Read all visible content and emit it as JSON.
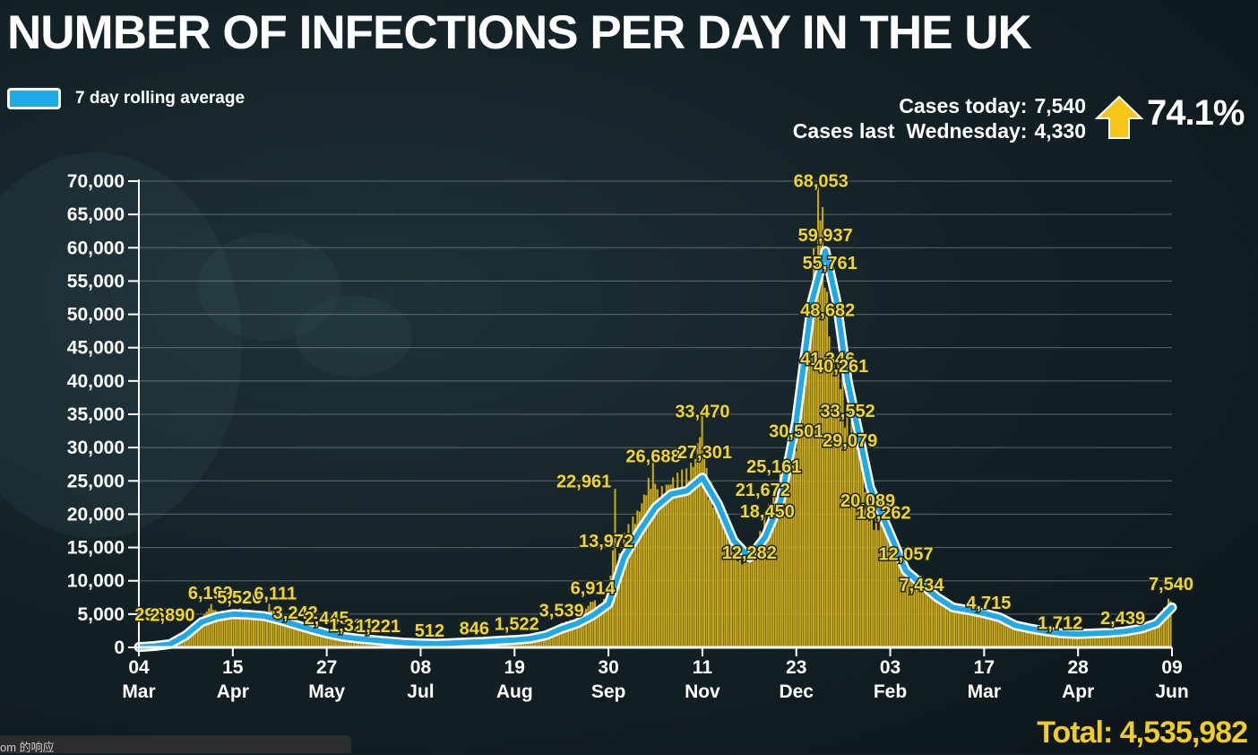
{
  "chart_data": {
    "type": "bar",
    "title": "NUMBER OF INFECTIONS PER DAY IN THE UK",
    "legend": {
      "label": "7 day rolling average",
      "placement": "top-left",
      "color": "#1fa9e6"
    },
    "ylim": [
      0,
      70000
    ],
    "yticks": [
      0,
      5000,
      10000,
      15000,
      20000,
      25000,
      30000,
      35000,
      40000,
      45000,
      50000,
      55000,
      60000,
      65000,
      70000
    ],
    "ytick_labels": [
      "0",
      "5,000",
      "10,000",
      "15,000",
      "20,000",
      "25,000",
      "30,000",
      "35,000",
      "40,000",
      "45,000",
      "50,000",
      "55,000",
      "60,000",
      "65,000",
      "70,000"
    ],
    "x_range": [
      "2020-03-04",
      "2021-06-09"
    ],
    "xticks": [
      {
        "date": "2020-03-04",
        "day": "04",
        "month": "Mar"
      },
      {
        "date": "2020-04-15",
        "day": "15",
        "month": "Apr"
      },
      {
        "date": "2020-05-27",
        "day": "27",
        "month": "May"
      },
      {
        "date": "2020-07-08",
        "day": "08",
        "month": "Jul"
      },
      {
        "date": "2020-08-19",
        "day": "19",
        "month": "Aug"
      },
      {
        "date": "2020-09-30",
        "day": "30",
        "month": "Sep"
      },
      {
        "date": "2020-11-11",
        "day": "11",
        "month": "Nov"
      },
      {
        "date": "2020-12-23",
        "day": "23",
        "month": "Dec"
      },
      {
        "date": "2021-02-03",
        "day": "03",
        "month": "Feb"
      },
      {
        "date": "2021-03-17",
        "day": "17",
        "month": "Mar"
      },
      {
        "date": "2021-04-28",
        "day": "28",
        "month": "Apr"
      },
      {
        "date": "2021-06-09",
        "day": "09",
        "month": "Jun"
      }
    ],
    "grid": true,
    "series": [
      {
        "name": "Daily cases",
        "color": "#c9a819",
        "points": [
          [
            "2020-03-04",
            50
          ],
          [
            "2020-03-11",
            200
          ],
          [
            "2020-03-18",
            600
          ],
          [
            "2020-03-25",
            2200
          ],
          [
            "2020-04-01",
            4300
          ],
          [
            "2020-04-05",
            6199
          ],
          [
            "2020-04-08",
            4700
          ],
          [
            "2020-04-15",
            5500
          ],
          [
            "2020-04-18",
            5526
          ],
          [
            "2020-04-22",
            4800
          ],
          [
            "2020-04-29",
            4200
          ],
          [
            "2020-05-01",
            6111
          ],
          [
            "2020-05-06",
            4400
          ],
          [
            "2020-05-13",
            3242
          ],
          [
            "2020-05-20",
            2600
          ],
          [
            "2020-05-27",
            2445
          ],
          [
            "2020-06-03",
            1700
          ],
          [
            "2020-06-10",
            1321
          ],
          [
            "2020-06-17",
            1221
          ],
          [
            "2020-06-24",
            1000
          ],
          [
            "2020-07-01",
            800
          ],
          [
            "2020-07-08",
            600
          ],
          [
            "2020-07-15",
            512
          ],
          [
            "2020-07-22",
            700
          ],
          [
            "2020-07-29",
            846
          ],
          [
            "2020-08-05",
            900
          ],
          [
            "2020-08-12",
            1100
          ],
          [
            "2020-08-19",
            1200
          ],
          [
            "2020-08-26",
            1522
          ],
          [
            "2020-09-02",
            2000
          ],
          [
            "2020-09-09",
            3539
          ],
          [
            "2020-09-16",
            4000
          ],
          [
            "2020-09-23",
            6914
          ],
          [
            "2020-09-26",
            6000
          ],
          [
            "2020-09-30",
            7500
          ],
          [
            "2020-10-02",
            13972
          ],
          [
            "2020-10-03",
            22961
          ],
          [
            "2020-10-04",
            12000
          ],
          [
            "2020-10-07",
            16000
          ],
          [
            "2020-10-14",
            20000
          ],
          [
            "2020-10-21",
            26688
          ],
          [
            "2020-10-22",
            22000
          ],
          [
            "2020-10-28",
            24000
          ],
          [
            "2020-11-04",
            25000
          ],
          [
            "2020-11-08",
            27301
          ],
          [
            "2020-11-11",
            33470
          ],
          [
            "2020-11-13",
            25000
          ],
          [
            "2020-11-18",
            20000
          ],
          [
            "2020-11-25",
            15000
          ],
          [
            "2020-11-30",
            12282
          ],
          [
            "2020-12-05",
            14000
          ],
          [
            "2020-12-09",
            18450
          ],
          [
            "2020-12-13",
            21672
          ],
          [
            "2020-12-16",
            25161
          ],
          [
            "2020-12-23",
            30501
          ],
          [
            "2020-12-25",
            35000
          ],
          [
            "2020-12-29",
            48682
          ],
          [
            "2020-12-31",
            55761
          ],
          [
            "2021-01-01",
            59937
          ],
          [
            "2021-01-03",
            68053
          ],
          [
            "2021-01-05",
            55000
          ],
          [
            "2021-01-08",
            41346
          ],
          [
            "2021-01-12",
            40261
          ],
          [
            "2021-01-15",
            33552
          ],
          [
            "2021-01-20",
            29079
          ],
          [
            "2021-01-25",
            20089
          ],
          [
            "2021-01-28",
            18262
          ],
          [
            "2021-02-03",
            17000
          ],
          [
            "2021-02-10",
            12057
          ],
          [
            "2021-02-17",
            10000
          ],
          [
            "2021-02-24",
            7434
          ],
          [
            "2021-03-03",
            6000
          ],
          [
            "2021-03-10",
            5500
          ],
          [
            "2021-03-17",
            4715
          ],
          [
            "2021-03-24",
            4000
          ],
          [
            "2021-03-31",
            3000
          ],
          [
            "2021-04-07",
            2700
          ],
          [
            "2021-04-14",
            2300
          ],
          [
            "2021-04-21",
            2000
          ],
          [
            "2021-04-28",
            1712
          ],
          [
            "2021-05-05",
            1900
          ],
          [
            "2021-05-12",
            2100
          ],
          [
            "2021-05-19",
            2439
          ],
          [
            "2021-05-26",
            2800
          ],
          [
            "2021-06-02",
            4000
          ],
          [
            "2021-06-07",
            6000
          ],
          [
            "2021-06-09",
            7540
          ]
        ]
      },
      {
        "name": "7 day rolling average",
        "color": "#1fa9e6",
        "points": [
          [
            "2020-03-04",
            50
          ],
          [
            "2020-03-11",
            200
          ],
          [
            "2020-03-18",
            500
          ],
          [
            "2020-03-25",
            1800
          ],
          [
            "2020-04-01",
            3800
          ],
          [
            "2020-04-08",
            4600
          ],
          [
            "2020-04-15",
            5000
          ],
          [
            "2020-04-22",
            4900
          ],
          [
            "2020-04-29",
            4700
          ],
          [
            "2020-05-06",
            4100
          ],
          [
            "2020-05-13",
            3400
          ],
          [
            "2020-05-20",
            2700
          ],
          [
            "2020-05-27",
            2100
          ],
          [
            "2020-06-03",
            1600
          ],
          [
            "2020-06-10",
            1300
          ],
          [
            "2020-06-17",
            1100
          ],
          [
            "2020-06-24",
            900
          ],
          [
            "2020-07-01",
            700
          ],
          [
            "2020-07-08",
            600
          ],
          [
            "2020-07-15",
            550
          ],
          [
            "2020-07-22",
            650
          ],
          [
            "2020-07-29",
            750
          ],
          [
            "2020-08-05",
            850
          ],
          [
            "2020-08-12",
            1000
          ],
          [
            "2020-08-19",
            1100
          ],
          [
            "2020-08-26",
            1300
          ],
          [
            "2020-09-02",
            1800
          ],
          [
            "2020-09-09",
            2800
          ],
          [
            "2020-09-16",
            3600
          ],
          [
            "2020-09-23",
            4800
          ],
          [
            "2020-09-30",
            6500
          ],
          [
            "2020-10-07",
            13500
          ],
          [
            "2020-10-14",
            17500
          ],
          [
            "2020-10-21",
            21000
          ],
          [
            "2020-10-28",
            23000
          ],
          [
            "2020-11-04",
            23500
          ],
          [
            "2020-11-11",
            25500
          ],
          [
            "2020-11-18",
            21500
          ],
          [
            "2020-11-25",
            16000
          ],
          [
            "2020-12-02",
            13500
          ],
          [
            "2020-12-09",
            16500
          ],
          [
            "2020-12-16",
            22000
          ],
          [
            "2020-12-23",
            34000
          ],
          [
            "2020-12-30",
            52000
          ],
          [
            "2021-01-05",
            59500
          ],
          [
            "2021-01-10",
            52000
          ],
          [
            "2021-01-15",
            40000
          ],
          [
            "2021-01-20",
            32000
          ],
          [
            "2021-01-25",
            24000
          ],
          [
            "2021-02-03",
            17000
          ],
          [
            "2021-02-10",
            11500
          ],
          [
            "2021-02-17",
            9500
          ],
          [
            "2021-02-24",
            7500
          ],
          [
            "2021-03-03",
            6000
          ],
          [
            "2021-03-10",
            5600
          ],
          [
            "2021-03-17",
            5100
          ],
          [
            "2021-03-24",
            4500
          ],
          [
            "2021-03-31",
            3300
          ],
          [
            "2021-04-07",
            2800
          ],
          [
            "2021-04-14",
            2400
          ],
          [
            "2021-04-21",
            2100
          ],
          [
            "2021-04-28",
            2000
          ],
          [
            "2021-05-05",
            2100
          ],
          [
            "2021-05-12",
            2200
          ],
          [
            "2021-05-19",
            2400
          ],
          [
            "2021-05-26",
            2800
          ],
          [
            "2021-06-02",
            3600
          ],
          [
            "2021-06-09",
            6000
          ]
        ]
      }
    ],
    "annotations": [
      {
        "date": "2020-03-11",
        "value": 2967,
        "text": "2967"
      },
      {
        "date": "2020-03-19",
        "value": 2890,
        "text": "2,890"
      },
      {
        "date": "2020-04-05",
        "value": 6199,
        "text": "6,199"
      },
      {
        "date": "2020-04-18",
        "value": 5526,
        "text": "5,526"
      },
      {
        "date": "2020-05-04",
        "value": 6111,
        "text": "6,111"
      },
      {
        "date": "2020-05-13",
        "value": 3242,
        "text": "3,242"
      },
      {
        "date": "2020-05-27",
        "value": 2445,
        "text": "2,445"
      },
      {
        "date": "2020-06-07",
        "value": 1321,
        "text": "1,321"
      },
      {
        "date": "2020-06-19",
        "value": 1221,
        "text": "1,221"
      },
      {
        "date": "2020-07-12",
        "value": 512,
        "text": "512"
      },
      {
        "date": "2020-08-01",
        "value": 846,
        "text": "846"
      },
      {
        "date": "2020-08-20",
        "value": 1522,
        "text": "1,522"
      },
      {
        "date": "2020-09-09",
        "value": 3539,
        "text": "3,539"
      },
      {
        "date": "2020-09-23",
        "value": 6914,
        "text": "6,914"
      },
      {
        "date": "2020-09-29",
        "value": 13972,
        "text": "13,972"
      },
      {
        "date": "2020-09-19",
        "value": 22961,
        "text": "22,961"
      },
      {
        "date": "2020-10-20",
        "value": 26688,
        "text": "26,688"
      },
      {
        "date": "2020-11-12",
        "value": 27301,
        "text": "27,301"
      },
      {
        "date": "2020-11-11",
        "value": 33470,
        "text": "33,470"
      },
      {
        "date": "2020-12-02",
        "value": 12282,
        "text": "12,282"
      },
      {
        "date": "2020-12-08",
        "value": 21672,
        "text": "21,672"
      },
      {
        "date": "2020-12-10",
        "value": 18450,
        "text": "18,450"
      },
      {
        "date": "2020-12-13",
        "value": 25161,
        "text": "25,161"
      },
      {
        "date": "2020-12-23",
        "value": 30501,
        "text": "30,501"
      },
      {
        "date": "2021-01-03",
        "value": 68053,
        "text": "68,053"
      },
      {
        "date": "2021-01-05",
        "value": 59937,
        "text": "59,937"
      },
      {
        "date": "2021-01-07",
        "value": 55761,
        "text": "55,761"
      },
      {
        "date": "2021-01-06",
        "value": 48682,
        "text": "48,682"
      },
      {
        "date": "2021-01-06",
        "value": 41346,
        "text": "41,346"
      },
      {
        "date": "2021-01-12",
        "value": 40261,
        "text": "40,261"
      },
      {
        "date": "2021-01-15",
        "value": 33552,
        "text": "33,552"
      },
      {
        "date": "2021-01-16",
        "value": 29079,
        "text": "29,079"
      },
      {
        "date": "2021-01-24",
        "value": 20089,
        "text": "20,089"
      },
      {
        "date": "2021-01-31",
        "value": 18262,
        "text": "18,262"
      },
      {
        "date": "2021-02-10",
        "value": 12057,
        "text": "12,057"
      },
      {
        "date": "2021-02-17",
        "value": 7434,
        "text": "7,434"
      },
      {
        "date": "2021-03-19",
        "value": 4715,
        "text": "4,715"
      },
      {
        "date": "2021-04-20",
        "value": 1712,
        "text": "1,712"
      },
      {
        "date": "2021-05-18",
        "value": 2439,
        "text": "2,439"
      },
      {
        "date": "2021-06-09",
        "value": 7540,
        "text": "7,540"
      }
    ]
  },
  "stats": {
    "cases_today_label": "Cases today:",
    "cases_today_value": "7,540",
    "cases_last_label": "Cases last  Wednesday:",
    "cases_last_value": "4,330",
    "change_pct": "74.1%",
    "arrow_color": "#f5c518"
  },
  "total_label": "Total: 4,535,982",
  "footer_text": "om 的响应"
}
